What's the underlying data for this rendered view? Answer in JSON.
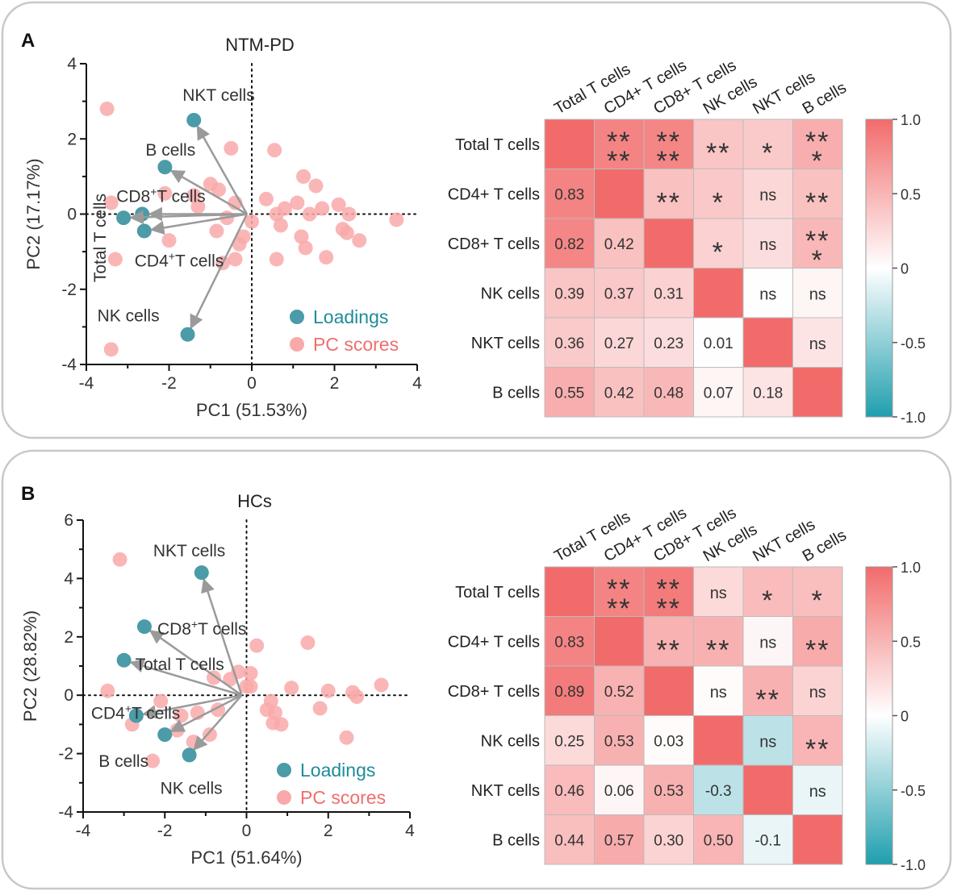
{
  "chart_data": [
    {
      "panel": "A",
      "type": "scatter",
      "title": "NTM-PD",
      "xlabel": "PC1 (51.53%)",
      "ylabel": "PC2 (17.17%)",
      "xlim": [
        -4,
        4
      ],
      "ylim": [
        -4,
        4
      ],
      "xticks": [
        "-4",
        "-2",
        "0",
        "2",
        "4"
      ],
      "yticks": [
        "-4",
        "-2",
        "0",
        "2",
        "4"
      ],
      "legend": {
        "loadings": "Loadings",
        "scores": "PC scores",
        "placement": "bottom-right"
      },
      "loadings": [
        {
          "name": "NKT cells",
          "sup": "",
          "x": -1.4,
          "y": 2.5
        },
        {
          "name": "B cells",
          "sup": "",
          "x": -2.1,
          "y": 1.25
        },
        {
          "name": "CD8",
          "sup": "+",
          "suffix": "T cells",
          "x": -2.65,
          "y": 0.0
        },
        {
          "name": "Total T cells",
          "sup": "",
          "x": -3.1,
          "y": -0.1
        },
        {
          "name": "CD4",
          "sup": "+",
          "suffix": "T cells",
          "x": -2.6,
          "y": -0.45
        },
        {
          "name": "NK cells",
          "sup": "",
          "x": -1.55,
          "y": -3.2
        }
      ],
      "scores": [
        [
          -3.5,
          2.8
        ],
        [
          -3.4,
          0.3
        ],
        [
          -3.3,
          -1.2
        ],
        [
          -3.4,
          -3.6
        ],
        [
          -2.1,
          0.55
        ],
        [
          -2.0,
          -0.7
        ],
        [
          -1.4,
          0.5
        ],
        [
          -1.3,
          0.2
        ],
        [
          -1.0,
          0.8
        ],
        [
          -0.8,
          0.65
        ],
        [
          -0.6,
          -0.1
        ],
        [
          -0.5,
          1.75
        ],
        [
          -0.4,
          0.3
        ],
        [
          -0.3,
          -0.8
        ],
        [
          -0.2,
          -0.6
        ],
        [
          -0.4,
          -1.2
        ],
        [
          -0.7,
          -1.3
        ],
        [
          -0.85,
          -0.45
        ],
        [
          0.0,
          -0.2
        ],
        [
          0.35,
          0.4
        ],
        [
          0.55,
          1.7
        ],
        [
          0.6,
          0.0
        ],
        [
          0.7,
          -0.3
        ],
        [
          0.8,
          0.15
        ],
        [
          0.6,
          -1.2
        ],
        [
          1.1,
          0.3
        ],
        [
          1.2,
          -0.6
        ],
        [
          1.25,
          1.0
        ],
        [
          1.3,
          -0.9
        ],
        [
          1.4,
          0.0
        ],
        [
          1.55,
          0.75
        ],
        [
          1.7,
          0.15
        ],
        [
          1.8,
          -1.15
        ],
        [
          2.1,
          0.25
        ],
        [
          2.2,
          -0.4
        ],
        [
          2.3,
          -0.5
        ],
        [
          2.35,
          0.0
        ],
        [
          2.6,
          -0.7
        ],
        [
          3.5,
          -0.15
        ]
      ]
    },
    {
      "panel": "A",
      "type": "heatmap",
      "labels": [
        "Total T cells",
        "CD4+ T cells",
        "CD8+ T cells",
        "NK cells",
        "NKT cells",
        "B cells"
      ],
      "matrix": [
        [
          1.0,
          0.83,
          0.82,
          0.39,
          0.36,
          0.55
        ],
        [
          0.83,
          1.0,
          0.42,
          0.37,
          0.27,
          0.42
        ],
        [
          0.82,
          0.42,
          1.0,
          0.31,
          0.23,
          0.48
        ],
        [
          0.39,
          0.37,
          0.31,
          1.0,
          0.01,
          0.07
        ],
        [
          0.36,
          0.27,
          0.23,
          0.01,
          1.0,
          0.18
        ],
        [
          0.55,
          0.42,
          0.48,
          0.07,
          0.18,
          1.0
        ]
      ],
      "value_labels": [
        [
          "",
          "",
          "",
          "",
          "",
          ""
        ],
        [
          "0.83",
          "",
          "",
          "",
          "",
          ""
        ],
        [
          "0.82",
          "0.42",
          "",
          "",
          "",
          ""
        ],
        [
          "0.39",
          "0.37",
          "0.31",
          "",
          "",
          ""
        ],
        [
          "0.36",
          "0.27",
          "0.23",
          "0.01",
          "",
          ""
        ],
        [
          "0.55",
          "0.42",
          "0.48",
          "0.07",
          "0.18",
          ""
        ]
      ],
      "significance": [
        [
          "",
          "****",
          "****",
          "**",
          "*",
          "***"
        ],
        [
          "",
          "",
          "**",
          "*",
          "ns",
          "**"
        ],
        [
          "",
          "",
          "",
          "*",
          "ns",
          "***"
        ],
        [
          "",
          "",
          "",
          "",
          "ns",
          "ns"
        ],
        [
          "",
          "",
          "",
          "",
          "",
          "ns"
        ],
        [
          "",
          "",
          "",
          "",
          "",
          ""
        ]
      ],
      "colorbar": {
        "range": [
          -1.0,
          1.0
        ],
        "ticks": [
          "1.0",
          "0.5",
          "0",
          "-0.5",
          "-1.0"
        ],
        "low": "#1f9fae",
        "mid": "#ffffff",
        "high": "#f26b6b"
      }
    },
    {
      "panel": "B",
      "type": "scatter",
      "title": "HCs",
      "xlabel": "PC1 (51.64%)",
      "ylabel": "PC2 (28.82%)",
      "xlim": [
        -4,
        4
      ],
      "ylim": [
        -4,
        6
      ],
      "xticks": [
        "-4",
        "-2",
        "0",
        "2",
        "4"
      ],
      "yticks": [
        "-4",
        "-2",
        "0",
        "2",
        "4",
        "6"
      ],
      "legend": {
        "loadings": "Loadings",
        "scores": "PC scores",
        "placement": "bottom-right"
      },
      "loadings": [
        {
          "name": "NKT cells",
          "sup": "",
          "x": -1.1,
          "y": 4.2
        },
        {
          "name": "CD8",
          "sup": "+",
          "suffix": "T cells",
          "x": -2.5,
          "y": 2.35
        },
        {
          "name": "Total T cells",
          "sup": "",
          "x": -3.0,
          "y": 1.2
        },
        {
          "name": "CD4",
          "sup": "+",
          "suffix": "T cells",
          "x": -2.7,
          "y": -0.7
        },
        {
          "name": "B cells",
          "sup": "",
          "x": -2.0,
          "y": -1.35
        },
        {
          "name": "NK cells",
          "sup": "",
          "x": -1.4,
          "y": -2.05
        }
      ],
      "scores": [
        [
          -3.1,
          4.65
        ],
        [
          -3.4,
          0.15
        ],
        [
          -2.8,
          -1.0
        ],
        [
          -2.3,
          -2.25
        ],
        [
          -2.1,
          -0.2
        ],
        [
          -1.6,
          -0.7
        ],
        [
          -1.2,
          -0.6
        ],
        [
          -1.7,
          -1.2
        ],
        [
          -1.3,
          -1.6
        ],
        [
          -0.9,
          -1.35
        ],
        [
          -0.7,
          -0.5
        ],
        [
          -0.8,
          0.6
        ],
        [
          -0.4,
          0.55
        ],
        [
          -0.2,
          0.8
        ],
        [
          0.0,
          0.3
        ],
        [
          0.1,
          0.75
        ],
        [
          0.25,
          1.7
        ],
        [
          0.1,
          0.3
        ],
        [
          0.5,
          -0.5
        ],
        [
          0.6,
          -0.2
        ],
        [
          0.7,
          -0.6
        ],
        [
          0.85,
          -1.0
        ],
        [
          0.65,
          -0.95
        ],
        [
          1.1,
          0.25
        ],
        [
          1.5,
          1.8
        ],
        [
          1.8,
          -0.45
        ],
        [
          2.0,
          0.15
        ],
        [
          2.45,
          -1.45
        ],
        [
          2.6,
          0.1
        ],
        [
          2.7,
          -0.05
        ],
        [
          3.3,
          0.35
        ]
      ]
    },
    {
      "panel": "B",
      "type": "heatmap",
      "labels": [
        "Total T cells",
        "CD4+ T cells",
        "CD8+ T cells",
        "NK cells",
        "NKT cells",
        "B cells"
      ],
      "matrix": [
        [
          1.0,
          0.83,
          0.89,
          0.25,
          0.46,
          0.44
        ],
        [
          0.83,
          1.0,
          0.52,
          0.53,
          0.06,
          0.57
        ],
        [
          0.89,
          0.52,
          1.0,
          0.03,
          0.53,
          0.3
        ],
        [
          0.25,
          0.53,
          0.03,
          1.0,
          -0.3,
          0.5
        ],
        [
          0.46,
          0.06,
          0.53,
          -0.3,
          1.0,
          -0.1
        ],
        [
          0.44,
          0.57,
          0.3,
          0.5,
          -0.1,
          1.0
        ]
      ],
      "value_labels": [
        [
          "",
          "",
          "",
          "",
          "",
          ""
        ],
        [
          "0.83",
          "",
          "",
          "",
          "",
          ""
        ],
        [
          "0.89",
          "0.52",
          "",
          "",
          "",
          ""
        ],
        [
          "0.25",
          "0.53",
          "0.03",
          "",
          "",
          ""
        ],
        [
          "0.46",
          "0.06",
          "0.53",
          "-0.3",
          "",
          ""
        ],
        [
          "0.44",
          "0.57",
          "0.30",
          "0.50",
          "-0.1",
          ""
        ]
      ],
      "significance": [
        [
          "",
          "****",
          "****",
          "ns",
          "*",
          "*"
        ],
        [
          "",
          "",
          "**",
          "**",
          "ns",
          "**"
        ],
        [
          "",
          "",
          "",
          "ns",
          "**",
          "ns"
        ],
        [
          "",
          "",
          "",
          "",
          "ns",
          "**"
        ],
        [
          "",
          "",
          "",
          "",
          "",
          "ns"
        ],
        [
          "",
          "",
          "",
          "",
          "",
          ""
        ]
      ],
      "colorbar": {
        "range": [
          -1.0,
          1.0
        ],
        "ticks": [
          "1.0",
          "0.5",
          "0",
          "-0.5",
          "-1.0"
        ],
        "low": "#1f9fae",
        "mid": "#ffffff",
        "high": "#f26b6b"
      }
    }
  ],
  "panel_labels": [
    "A",
    "B"
  ],
  "colors": {
    "loading": "#4b9ba8",
    "score": "#f9a9a9",
    "arrow": "#9a9a9a",
    "loading_text": "#1e8c9a",
    "score_text": "#f06e6e",
    "frame": "#c8c8c8"
  }
}
